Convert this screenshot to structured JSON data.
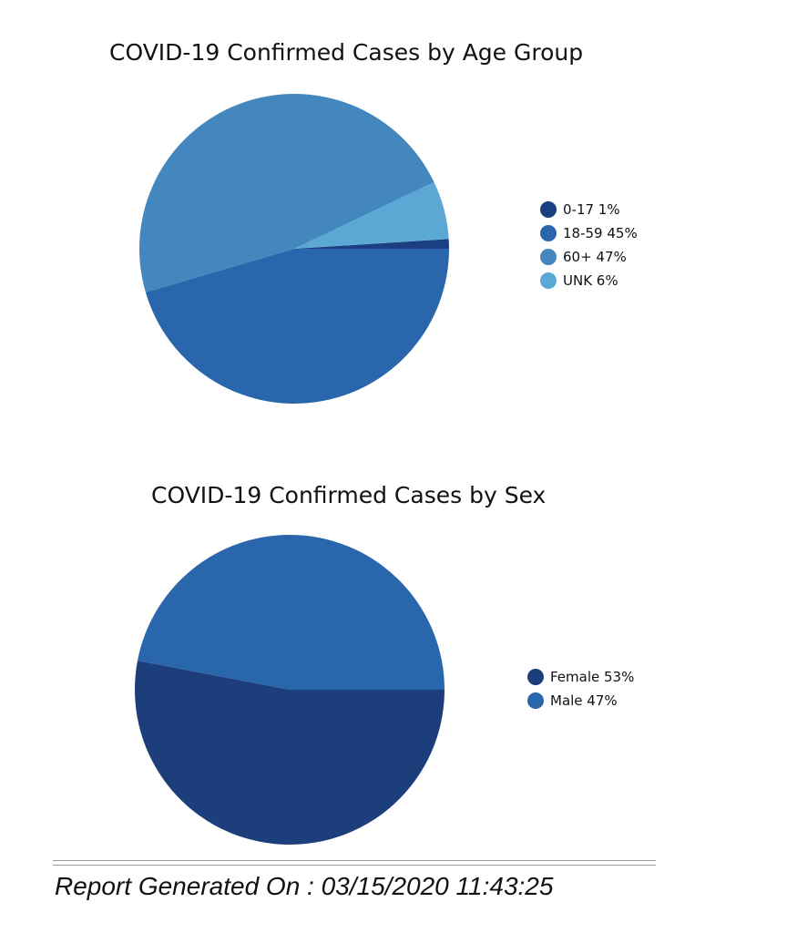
{
  "chart_data": [
    {
      "type": "pie",
      "title": "COVID-19 Confirmed Cases by Age Group",
      "slices": [
        {
          "label": "0-17",
          "value": 1,
          "legend": "0-17 1%",
          "color": "#1c3f82"
        },
        {
          "label": "18-59",
          "value": 45,
          "legend": "18-59 45%",
          "color": "#2a66ab"
        },
        {
          "label": "60+",
          "value": 47,
          "legend": "60+ 47%",
          "color": "#4487be"
        },
        {
          "label": "UNK",
          "value": 6,
          "legend": "UNK 6%",
          "color": "#5aa8d3"
        }
      ],
      "legend_position": "right"
    },
    {
      "type": "pie",
      "title": "COVID-19 Confirmed Cases by Sex",
      "slices": [
        {
          "label": "Female",
          "value": 53,
          "legend": "Female 53%",
          "color": "#1c3f7c"
        },
        {
          "label": "Male",
          "value": 47,
          "legend": "Male 47%",
          "color": "#2a66ab"
        }
      ],
      "legend_position": "right"
    }
  ],
  "footer": {
    "report_text": "Report Generated On : 03/15/2020 11:43:25"
  }
}
